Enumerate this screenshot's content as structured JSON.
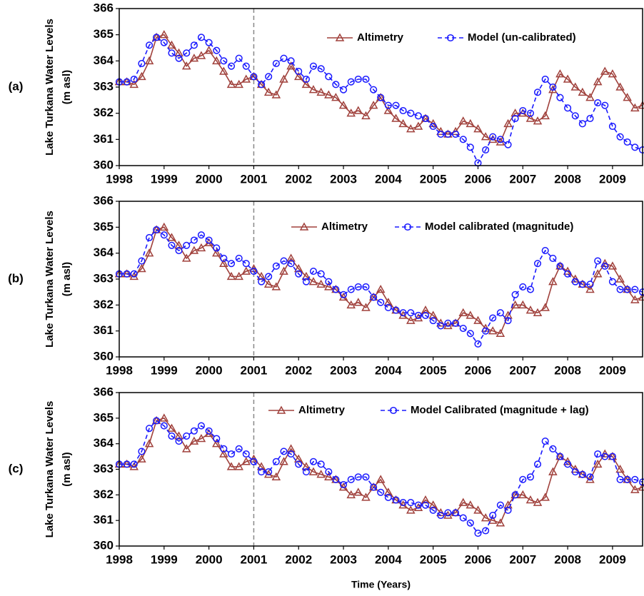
{
  "chart_data": [
    {
      "type": "line",
      "panel_label": "(a)",
      "ylabel": [
        "Lake Turkana Water Levels",
        "(m asl)"
      ],
      "x": [
        1998,
        1998.17,
        1998.33,
        1998.5,
        1998.67,
        1998.83,
        1999,
        1999.17,
        1999.33,
        1999.5,
        1999.67,
        1999.83,
        2000,
        2000.17,
        2000.33,
        2000.5,
        2000.67,
        2000.83,
        2001,
        2001.17,
        2001.33,
        2001.5,
        2001.67,
        2001.83,
        2002,
        2002.17,
        2002.33,
        2002.5,
        2002.67,
        2002.83,
        2003,
        2003.17,
        2003.33,
        2003.5,
        2003.67,
        2003.83,
        2004,
        2004.17,
        2004.33,
        2004.5,
        2004.67,
        2004.83,
        2005,
        2005.17,
        2005.33,
        2005.5,
        2005.67,
        2005.83,
        2006,
        2006.17,
        2006.33,
        2006.5,
        2006.67,
        2006.83,
        2007,
        2007.17,
        2007.33,
        2007.5,
        2007.67,
        2007.83,
        2008,
        2008.17,
        2008.33,
        2008.5,
        2008.67,
        2008.83,
        2009,
        2009.17,
        2009.33,
        2009.5,
        2009.67
      ],
      "series": [
        {
          "name": "Altimetry",
          "color": "#a0413c",
          "marker": "triangle",
          "line_style": "solid",
          "values": [
            363.2,
            363.2,
            363.1,
            363.4,
            364.0,
            364.9,
            365.0,
            364.6,
            364.3,
            363.8,
            364.1,
            364.2,
            364.4,
            364.0,
            363.6,
            363.1,
            363.1,
            363.3,
            363.4,
            363.1,
            362.8,
            362.7,
            363.3,
            363.8,
            363.4,
            363.1,
            362.9,
            362.8,
            362.7,
            362.6,
            362.3,
            362.0,
            362.1,
            361.9,
            362.3,
            362.6,
            362.1,
            361.8,
            361.6,
            361.4,
            361.5,
            361.8,
            361.6,
            361.3,
            361.2,
            361.3,
            361.7,
            361.6,
            361.4,
            361.1,
            361.0,
            360.9,
            361.6,
            362.0,
            362.0,
            361.8,
            361.7,
            361.9,
            362.9,
            363.5,
            363.3,
            363.0,
            362.8,
            362.6,
            363.2,
            363.6,
            363.5,
            363.0,
            362.6,
            362.2,
            362.3
          ]
        },
        {
          "name": "Model (un-calibrated)",
          "color": "#1a1aff",
          "marker": "circle",
          "line_style": "dashed",
          "values": [
            363.2,
            363.2,
            363.3,
            363.9,
            364.6,
            364.9,
            364.7,
            364.3,
            364.1,
            364.3,
            364.6,
            364.9,
            364.7,
            364.4,
            364.0,
            363.8,
            364.1,
            363.8,
            363.4,
            363.1,
            363.4,
            363.9,
            364.1,
            364.0,
            363.6,
            363.3,
            363.8,
            363.7,
            363.4,
            363.1,
            362.9,
            363.2,
            363.3,
            363.3,
            362.9,
            362.6,
            362.3,
            362.3,
            362.1,
            362.0,
            361.9,
            361.8,
            361.5,
            361.2,
            361.2,
            361.2,
            361.0,
            360.7,
            360.1,
            360.6,
            361.1,
            361.0,
            360.8,
            361.8,
            362.1,
            362.0,
            362.8,
            363.3,
            363.0,
            362.6,
            362.2,
            361.9,
            361.6,
            361.8,
            362.4,
            362.3,
            361.5,
            361.1,
            360.9,
            360.7,
            360.6
          ]
        }
      ],
      "xlim": [
        1998,
        2009.67
      ],
      "xticks": [
        1998,
        1999,
        2000,
        2001,
        2002,
        2003,
        2004,
        2005,
        2006,
        2007,
        2008,
        2009
      ],
      "ylim": [
        360,
        366
      ],
      "yticks": [
        360,
        361,
        362,
        363,
        364,
        365,
        366
      ],
      "reference_line_x": 2001
    },
    {
      "type": "line",
      "panel_label": "(b)",
      "ylabel": [
        "Lake Turkana Water Levels",
        "(m asl)"
      ],
      "x": [
        1998,
        1998.17,
        1998.33,
        1998.5,
        1998.67,
        1998.83,
        1999,
        1999.17,
        1999.33,
        1999.5,
        1999.67,
        1999.83,
        2000,
        2000.17,
        2000.33,
        2000.5,
        2000.67,
        2000.83,
        2001,
        2001.17,
        2001.33,
        2001.5,
        2001.67,
        2001.83,
        2002,
        2002.17,
        2002.33,
        2002.5,
        2002.67,
        2002.83,
        2003,
        2003.17,
        2003.33,
        2003.5,
        2003.67,
        2003.83,
        2004,
        2004.17,
        2004.33,
        2004.5,
        2004.67,
        2004.83,
        2005,
        2005.17,
        2005.33,
        2005.5,
        2005.67,
        2005.83,
        2006,
        2006.17,
        2006.33,
        2006.5,
        2006.67,
        2006.83,
        2007,
        2007.17,
        2007.33,
        2007.5,
        2007.67,
        2007.83,
        2008,
        2008.17,
        2008.33,
        2008.5,
        2008.67,
        2008.83,
        2009,
        2009.17,
        2009.33,
        2009.5,
        2009.67
      ],
      "series": [
        {
          "name": "Altimetry",
          "color": "#a0413c",
          "marker": "triangle",
          "line_style": "solid",
          "values": [
            363.2,
            363.2,
            363.1,
            363.4,
            364.0,
            364.9,
            365.0,
            364.6,
            364.3,
            363.8,
            364.1,
            364.2,
            364.4,
            364.0,
            363.6,
            363.1,
            363.1,
            363.3,
            363.4,
            363.1,
            362.8,
            362.7,
            363.3,
            363.8,
            363.4,
            363.1,
            362.9,
            362.8,
            362.7,
            362.6,
            362.3,
            362.0,
            362.1,
            361.9,
            362.3,
            362.6,
            362.1,
            361.8,
            361.6,
            361.4,
            361.5,
            361.8,
            361.6,
            361.3,
            361.2,
            361.3,
            361.7,
            361.6,
            361.4,
            361.1,
            361.0,
            360.9,
            361.6,
            362.0,
            362.0,
            361.8,
            361.7,
            361.9,
            362.9,
            363.5,
            363.3,
            363.0,
            362.8,
            362.6,
            363.2,
            363.6,
            363.5,
            363.0,
            362.6,
            362.2,
            362.3
          ]
        },
        {
          "name": "Model calibrated (magnitude)",
          "color": "#1a1aff",
          "marker": "circle",
          "line_style": "dashed",
          "values": [
            363.2,
            363.2,
            363.2,
            363.7,
            364.6,
            364.9,
            364.7,
            364.3,
            364.1,
            364.3,
            364.5,
            364.7,
            364.5,
            364.2,
            363.8,
            363.6,
            363.8,
            363.6,
            363.3,
            362.9,
            363.1,
            363.5,
            363.7,
            363.6,
            363.2,
            362.9,
            363.3,
            363.2,
            362.9,
            362.6,
            362.4,
            362.6,
            362.7,
            362.7,
            362.3,
            362.1,
            361.9,
            361.8,
            361.7,
            361.7,
            361.6,
            361.6,
            361.4,
            361.2,
            361.3,
            361.3,
            361.1,
            360.9,
            360.5,
            361.0,
            361.5,
            361.7,
            361.4,
            362.4,
            362.7,
            362.6,
            363.6,
            364.1,
            363.8,
            363.5,
            363.2,
            362.9,
            362.8,
            362.8,
            363.7,
            363.5,
            362.9,
            362.6,
            362.6,
            362.6,
            362.5
          ]
        }
      ],
      "xlim": [
        1998,
        2009.67
      ],
      "xticks": [
        1998,
        1999,
        2000,
        2001,
        2002,
        2003,
        2004,
        2005,
        2006,
        2007,
        2008,
        2009
      ],
      "ylim": [
        360,
        366
      ],
      "yticks": [
        360,
        361,
        362,
        363,
        364,
        365,
        366
      ],
      "reference_line_x": 2001
    },
    {
      "type": "line",
      "panel_label": "(c)",
      "ylabel": [
        "Lake Turkana Water Levels",
        "(m asl)"
      ],
      "xlabel": "Time (Years)",
      "x": [
        1998,
        1998.17,
        1998.33,
        1998.5,
        1998.67,
        1998.83,
        1999,
        1999.17,
        1999.33,
        1999.5,
        1999.67,
        1999.83,
        2000,
        2000.17,
        2000.33,
        2000.5,
        2000.67,
        2000.83,
        2001,
        2001.17,
        2001.33,
        2001.5,
        2001.67,
        2001.83,
        2002,
        2002.17,
        2002.33,
        2002.5,
        2002.67,
        2002.83,
        2003,
        2003.17,
        2003.33,
        2003.5,
        2003.67,
        2003.83,
        2004,
        2004.17,
        2004.33,
        2004.5,
        2004.67,
        2004.83,
        2005,
        2005.17,
        2005.33,
        2005.5,
        2005.67,
        2005.83,
        2006,
        2006.17,
        2006.33,
        2006.5,
        2006.67,
        2006.83,
        2007,
        2007.17,
        2007.33,
        2007.5,
        2007.67,
        2007.83,
        2008,
        2008.17,
        2008.33,
        2008.5,
        2008.67,
        2008.83,
        2009,
        2009.17,
        2009.33,
        2009.5,
        2009.67
      ],
      "series": [
        {
          "name": "Altimetry",
          "color": "#a0413c",
          "marker": "triangle",
          "line_style": "solid",
          "values": [
            363.2,
            363.2,
            363.1,
            363.4,
            364.0,
            364.9,
            365.0,
            364.6,
            364.3,
            363.8,
            364.1,
            364.2,
            364.4,
            364.0,
            363.6,
            363.1,
            363.1,
            363.3,
            363.4,
            363.1,
            362.8,
            362.7,
            363.3,
            363.8,
            363.4,
            363.1,
            362.9,
            362.8,
            362.7,
            362.6,
            362.3,
            362.0,
            362.1,
            361.9,
            362.3,
            362.6,
            362.1,
            361.8,
            361.6,
            361.4,
            361.5,
            361.8,
            361.6,
            361.3,
            361.2,
            361.3,
            361.7,
            361.6,
            361.4,
            361.1,
            361.0,
            360.9,
            361.6,
            362.0,
            362.0,
            361.8,
            361.7,
            361.9,
            362.9,
            363.5,
            363.3,
            363.0,
            362.8,
            362.6,
            363.2,
            363.6,
            363.5,
            363.0,
            362.6,
            362.2,
            362.3
          ]
        },
        {
          "name": "Model Calibrated (magnitude + lag)",
          "color": "#1a1aff",
          "marker": "circle",
          "line_style": "dashed",
          "values": [
            363.2,
            363.2,
            363.2,
            363.7,
            364.6,
            364.9,
            364.7,
            364.3,
            364.1,
            364.3,
            364.5,
            364.7,
            364.5,
            364.2,
            363.8,
            363.6,
            363.8,
            363.6,
            363.3,
            362.9,
            362.9,
            363.3,
            363.7,
            363.6,
            363.2,
            362.9,
            363.3,
            363.2,
            362.9,
            362.6,
            362.4,
            362.6,
            362.7,
            362.7,
            362.3,
            362.1,
            361.9,
            361.8,
            361.7,
            361.7,
            361.6,
            361.6,
            361.4,
            361.2,
            361.3,
            361.3,
            361.1,
            360.9,
            360.5,
            360.6,
            361.2,
            361.6,
            361.4,
            362.0,
            362.6,
            362.7,
            363.2,
            364.1,
            363.8,
            363.5,
            363.2,
            362.9,
            362.8,
            362.7,
            363.6,
            363.5,
            363.5,
            362.6,
            362.6,
            362.6,
            362.5
          ]
        }
      ],
      "xlim": [
        1998,
        2009.67
      ],
      "xticks": [
        1998,
        1999,
        2000,
        2001,
        2002,
        2003,
        2004,
        2005,
        2006,
        2007,
        2008,
        2009
      ],
      "ylim": [
        360,
        366
      ],
      "yticks": [
        360,
        361,
        362,
        363,
        364,
        365,
        366
      ],
      "reference_line_x": 2001
    }
  ]
}
